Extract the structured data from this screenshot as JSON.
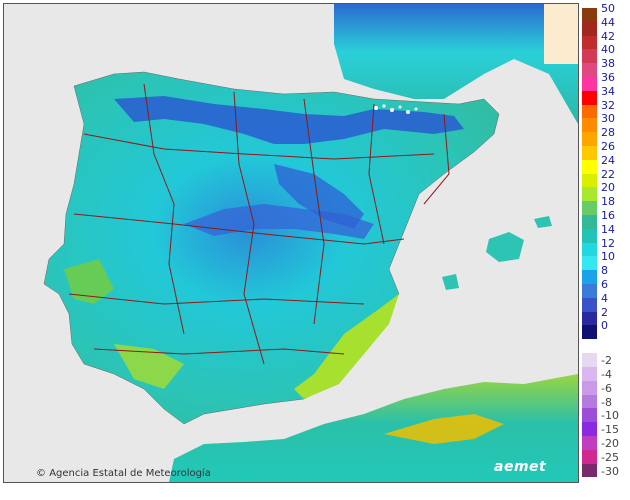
{
  "map": {
    "credit": "Agencia Estatal de Meteorología",
    "logo_text": "aemet",
    "colors": {
      "sea": "#e8e8e8",
      "france": "#9ee7d8",
      "pyrenees_snow": "#ffffff",
      "borders": "#8b1a1a"
    }
  },
  "legend": {
    "unit_hint": "",
    "positive": [
      {
        "label": "50",
        "color": "#8b3a0f"
      },
      {
        "label": "44",
        "color": "#a0281e"
      },
      {
        "label": "42",
        "color": "#c12d2d"
      },
      {
        "label": "40",
        "color": "#d23a55"
      },
      {
        "label": "38",
        "color": "#e04880"
      },
      {
        "label": "36",
        "color": "#ff33a1"
      },
      {
        "label": "34",
        "color": "#ff0000"
      },
      {
        "label": "32",
        "color": "#ff6a00"
      },
      {
        "label": "30",
        "color": "#ff8c00"
      },
      {
        "label": "28",
        "color": "#ffa500"
      },
      {
        "label": "26",
        "color": "#ffc800"
      },
      {
        "label": "24",
        "color": "#ffff00"
      },
      {
        "label": "22",
        "color": "#d8f000"
      },
      {
        "label": "20",
        "color": "#a8e830"
      },
      {
        "label": "18",
        "color": "#66cc66"
      },
      {
        "label": "16",
        "color": "#33b89a"
      },
      {
        "label": "14",
        "color": "#22c4b8"
      },
      {
        "label": "12",
        "color": "#22d8e0"
      },
      {
        "label": "10",
        "color": "#33e8f0"
      },
      {
        "label": "8",
        "color": "#1aa3e8"
      },
      {
        "label": "6",
        "color": "#3a7ad8"
      },
      {
        "label": "4",
        "color": "#3a52c8"
      },
      {
        "label": "2",
        "color": "#2a2aa0"
      },
      {
        "label": "0",
        "color": "#101070"
      }
    ],
    "negative": [
      {
        "label": "-2",
        "color": "#e6d8f0"
      },
      {
        "label": "-4",
        "color": "#d8b8ee"
      },
      {
        "label": "-6",
        "color": "#c89ae8"
      },
      {
        "label": "-8",
        "color": "#b57ae0"
      },
      {
        "label": "-10",
        "color": "#9b4fd8"
      },
      {
        "label": "-15",
        "color": "#8a2be2"
      },
      {
        "label": "-20",
        "color": "#c03cc0"
      },
      {
        "label": "-25",
        "color": "#d02890"
      },
      {
        "label": "-30",
        "color": "#7a2a6a"
      }
    ]
  }
}
